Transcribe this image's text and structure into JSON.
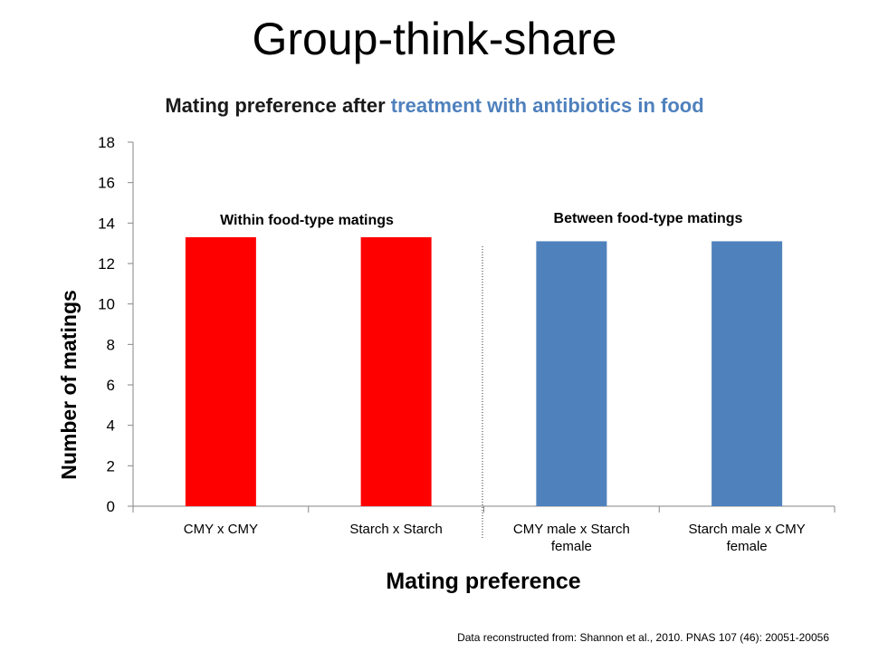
{
  "slide": {
    "title": "Group-think-share",
    "citation": "Data reconstructed from: Shannon et al., 2010.  PNAS 107 (46): 20051-20056"
  },
  "chart_data": {
    "type": "bar",
    "title_part1": "Mating preference after ",
    "title_part2": "treatment with antibiotics in food",
    "xlabel": "Mating preference",
    "ylabel": "Number of matings",
    "ylim": [
      0,
      18
    ],
    "yticks": [
      0,
      2,
      4,
      6,
      8,
      10,
      12,
      14,
      16,
      18
    ],
    "categories": [
      [
        "CMY x CMY"
      ],
      [
        "Starch x Starch"
      ],
      [
        "CMY male x Starch",
        "female"
      ],
      [
        "Starch male x CMY",
        "female"
      ]
    ],
    "values": [
      13.3,
      13.3,
      13.1,
      13.1
    ],
    "bar_colors": [
      "#ff0000",
      "#ff0000",
      "#4f81bd",
      "#4f81bd"
    ],
    "annotations": [
      "Within food-type matings",
      "Between food-type matings"
    ],
    "grid": false,
    "legend": "none"
  }
}
